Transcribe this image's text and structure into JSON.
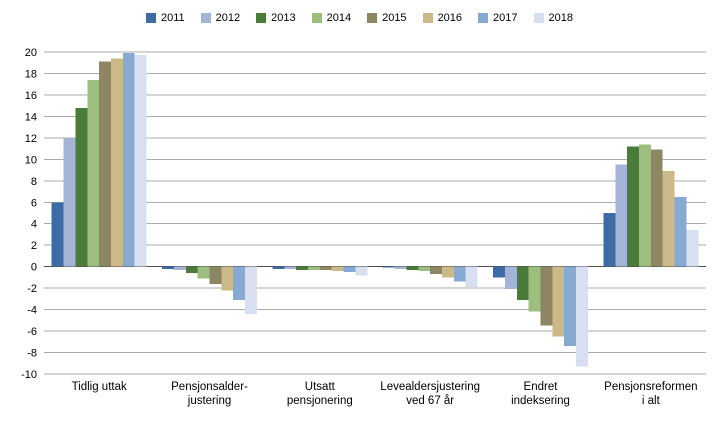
{
  "chart_data": {
    "type": "bar",
    "title": "",
    "xlabel": "",
    "ylabel": "",
    "ylim": [
      -10,
      20
    ],
    "ytick_step": 2,
    "grid": true,
    "legend_position": "top",
    "categories": [
      "Tidlig uttak",
      "Pensjonsalder-\njustering",
      "Utsatt\npensjonering",
      "Levealdersjustering\nved 67 år",
      "Endret\nindeksering",
      "Pensjonsreformen\ni alt"
    ],
    "series": [
      {
        "name": "2011",
        "color": "#3D6BA6",
        "values": [
          6.0,
          -0.2,
          -0.2,
          -0.1,
          -1.0,
          5.0
        ]
      },
      {
        "name": "2012",
        "color": "#A3B4D6",
        "values": [
          12.0,
          -0.3,
          -0.2,
          -0.2,
          -2.1,
          9.5
        ]
      },
      {
        "name": "2013",
        "color": "#4A7B3B",
        "values": [
          14.8,
          -0.6,
          -0.3,
          -0.3,
          -3.1,
          11.2
        ]
      },
      {
        "name": "2014",
        "color": "#9CBE7E",
        "values": [
          17.4,
          -1.1,
          -0.3,
          -0.4,
          -4.2,
          11.4
        ]
      },
      {
        "name": "2015",
        "color": "#8C8663",
        "values": [
          19.1,
          -1.6,
          -0.3,
          -0.7,
          -5.5,
          10.9
        ]
      },
      {
        "name": "2016",
        "color": "#CBB98A",
        "values": [
          19.4,
          -2.2,
          -0.4,
          -1.0,
          -6.5,
          8.9
        ]
      },
      {
        "name": "2017",
        "color": "#88AAD2",
        "values": [
          19.9,
          -3.1,
          -0.5,
          -1.4,
          -7.4,
          6.5
        ]
      },
      {
        "name": "2018",
        "color": "#D7DFF0",
        "values": [
          19.7,
          -4.4,
          -0.8,
          -1.9,
          -9.3,
          3.4
        ]
      }
    ],
    "axis_colors": {
      "gridline": "#ABABAB",
      "zero_line": "#4d4d4d",
      "text": "#000000"
    }
  }
}
